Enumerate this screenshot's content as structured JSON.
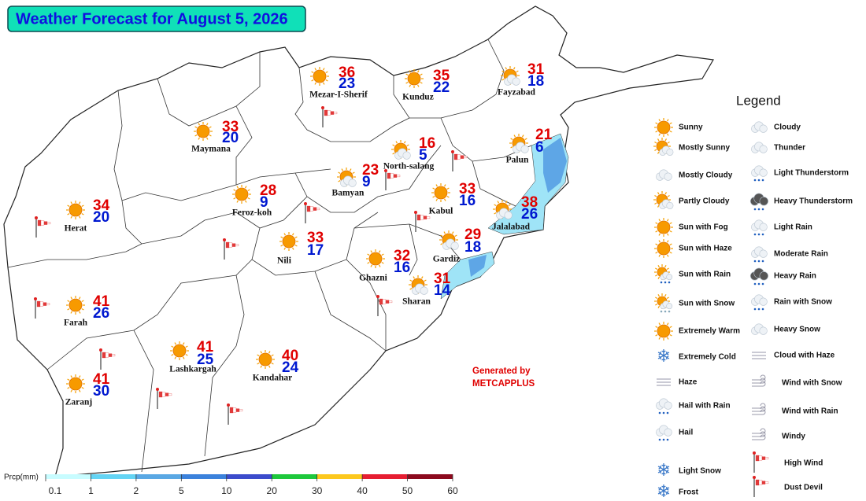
{
  "title": "Weather Forecast for August 5, 2026",
  "cities": [
    {
      "name": "Mezar-I-Sherif",
      "max": 36,
      "min": 23
    },
    {
      "name": "Kunduz",
      "max": 35,
      "min": 22
    },
    {
      "name": "Fayzabad",
      "max": 31,
      "min": 18
    },
    {
      "name": "Maymana",
      "max": 33,
      "min": 20
    },
    {
      "name": "North-salang",
      "max": 16,
      "min": 5
    },
    {
      "name": "Bamyan",
      "max": 23,
      "min": 9
    },
    {
      "name": "Feroz-koh",
      "max": 28,
      "min": 9
    },
    {
      "name": "Kabul",
      "max": 33,
      "min": 16
    },
    {
      "name": "Palun",
      "max": 21,
      "min": 6
    },
    {
      "name": "Jalalabad",
      "max": 38,
      "min": 26
    },
    {
      "name": "Herat",
      "max": 34,
      "min": 20
    },
    {
      "name": "Nili",
      "max": 33,
      "min": 17
    },
    {
      "name": "Gardiz",
      "max": 29,
      "min": 18
    },
    {
      "name": "Ghazni",
      "max": 32,
      "min": 16
    },
    {
      "name": "Sharan",
      "max": 31,
      "min": 14
    },
    {
      "name": "Farah",
      "max": 41,
      "min": 26
    },
    {
      "name": "Lashkargah",
      "max": 41,
      "min": 25
    },
    {
      "name": "Kandahar",
      "max": 40,
      "min": 24
    },
    {
      "name": "Zaranj",
      "max": 41,
      "min": 30
    }
  ],
  "legend": {
    "title": "Legend",
    "left": [
      "Sunny",
      "Mostly Sunny",
      "Mostly Cloudy",
      "Partly Cloudy",
      "Sun with Fog",
      "Sun with Haze",
      "Sun with Rain",
      "Sun with Snow",
      "Extremely Warm",
      "Extremely Cold",
      "Haze",
      "Hail with Rain",
      "Hail",
      "Light Snow",
      "Frost"
    ],
    "right": [
      "Cloudy",
      "Thunder",
      "Light Thunderstorm",
      "Heavy Thunderstorm",
      "Light Rain",
      "Moderate Rain",
      "Heavy Rain",
      "Rain with Snow",
      "Heavy Snow",
      "Cloud with Haze",
      "Wind with Snow",
      "Wind with Rain",
      "Windy",
      "High Wind",
      "Dust Devil"
    ]
  },
  "generated": {
    "line1": "Generated by",
    "line2": "METCAPPLUS"
  },
  "precipitation_scale": {
    "label": "Prcp(mm)",
    "ticks": [
      0.1,
      1,
      2,
      5,
      10,
      20,
      30,
      40,
      50,
      60
    ],
    "colors": [
      "#c8fcff",
      "#64d4f4",
      "#5aa8e4",
      "#3c82dc",
      "#3c4ccc",
      "#1ec83c",
      "#fcc81e",
      "#e61e32",
      "#8c0a1e"
    ]
  }
}
